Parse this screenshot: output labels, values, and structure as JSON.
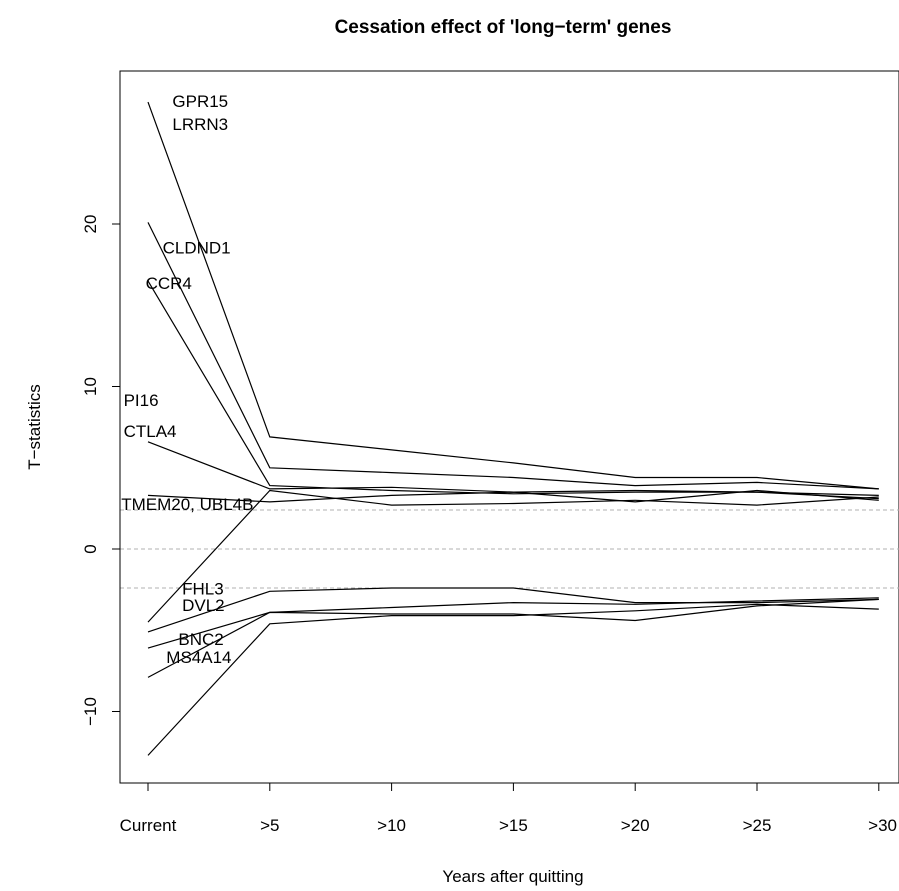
{
  "chart_data": {
    "type": "line",
    "title": "Cessation effect of 'long−term' genes",
    "xlabel": "Years after quitting",
    "ylabel": "T−statistics",
    "categories": [
      "Current",
      ">5",
      ">10",
      ">15",
      ">20",
      ">25",
      ">30"
    ],
    "ylim": [
      -14.6,
      29.2
    ],
    "y_ticks": [
      -10,
      0,
      10,
      20
    ],
    "y_tick_labels": [
      "−10",
      "0",
      "10",
      "20"
    ],
    "grid": false,
    "reference_lines": [
      -2.4,
      0,
      2.4
    ],
    "series": [
      {
        "values": [
          27.5,
          6.9,
          6.1,
          5.3,
          4.4,
          4.4,
          3.7
        ]
      },
      {
        "values": [
          20.1,
          5.0,
          4.7,
          4.4,
          3.9,
          4.1,
          3.7
        ]
      },
      {
        "values": [
          16.5,
          3.9,
          3.6,
          3.4,
          3.5,
          3.5,
          3.3
        ]
      },
      {
        "values": [
          6.6,
          3.7,
          3.8,
          3.5,
          3.6,
          3.5,
          3.1
        ]
      },
      {
        "values": [
          3.3,
          2.9,
          3.3,
          3.5,
          2.9,
          3.6,
          3.0
        ]
      },
      {
        "values": [
          -4.5,
          3.6,
          2.7,
          2.8,
          3.0,
          2.7,
          3.2
        ]
      },
      {
        "values": [
          -5.1,
          -2.6,
          -2.4,
          -2.4,
          -3.3,
          -3.3,
          -3.1
        ]
      },
      {
        "values": [
          -6.1,
          -3.9,
          -3.6,
          -3.3,
          -3.4,
          -3.2,
          -3.0
        ]
      },
      {
        "values": [
          -7.9,
          -3.9,
          -4.0,
          -4.0,
          -4.4,
          -3.5,
          -3.1
        ]
      },
      {
        "values": [
          -12.7,
          -4.6,
          -4.1,
          -4.1,
          -3.8,
          -3.4,
          -3.7
        ]
      }
    ],
    "gene_labels": [
      {
        "text": "GPR15",
        "x": 0.2,
        "y": 27.2
      },
      {
        "text": "LRRN3",
        "x": 0.2,
        "y": 25.8
      },
      {
        "text": "CLDND1",
        "x": 0.12,
        "y": 18.2
      },
      {
        "text": "CCR4",
        "x": -0.02,
        "y": 16.0
      },
      {
        "text": "PI16",
        "x": -0.2,
        "y": 8.8
      },
      {
        "text": "CTLA4",
        "x": -0.2,
        "y": 6.9
      },
      {
        "text": "TMEM20, UBL4B",
        "x": -0.22,
        "y": 2.4
      },
      {
        "text": "FHL3",
        "x": 0.28,
        "y": -2.8
      },
      {
        "text": "DVL2",
        "x": 0.28,
        "y": -3.8
      },
      {
        "text": "BNC2",
        "x": 0.25,
        "y": -5.9
      },
      {
        "text": "MS4A14",
        "x": 0.15,
        "y": -7.0
      }
    ]
  }
}
